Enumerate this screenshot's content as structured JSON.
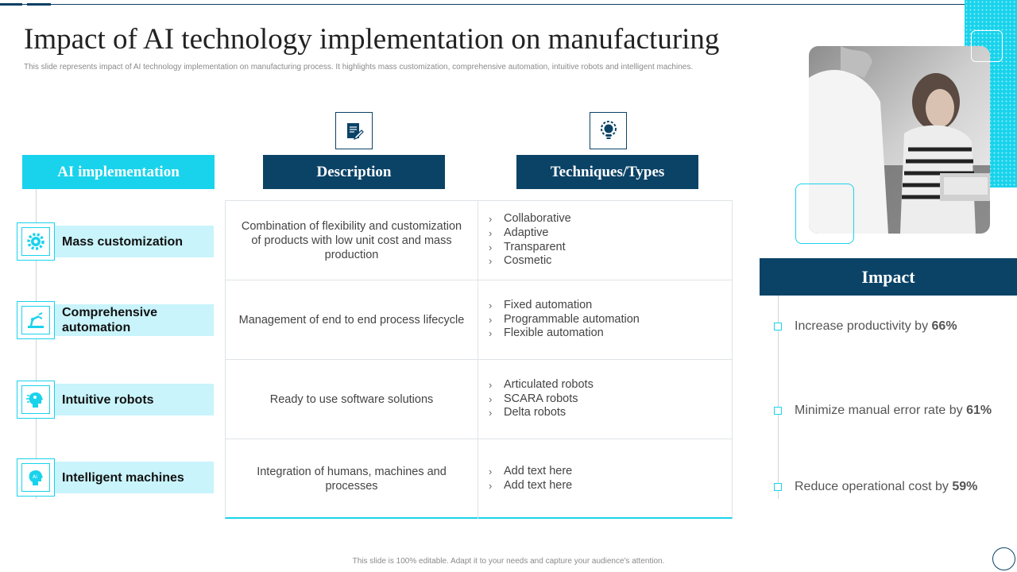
{
  "title": "Impact of AI technology implementation on manufacturing",
  "subtitle": "This slide represents impact of AI technology implementation  on manufacturing process. It highlights mass customization, comprehensive automation, intuitive robots and intelligent machines.",
  "headers": {
    "ai": "AI implementation",
    "description": "Description",
    "techniques": "Techniques/Types"
  },
  "icons": {
    "description": "document-edit-icon",
    "techniques": "lightbulb-gear-icon"
  },
  "rows": [
    {
      "label": "Mass customization",
      "icon": "gear-icon",
      "description": "Combination of flexibility and customization of products with low unit cost and mass production",
      "techniques": [
        "Collaborative",
        "Adaptive",
        "Transparent",
        "Cosmetic"
      ]
    },
    {
      "label": "Comprehensive automation",
      "icon": "robotic-arm-icon",
      "description": "Management of end to end process lifecycle",
      "techniques": [
        "Fixed automation",
        "Programmable automation",
        "Flexible automation"
      ]
    },
    {
      "label": "Intuitive robots",
      "icon": "ai-head-icon",
      "description": "Ready to use software solutions",
      "techniques": [
        "Articulated robots",
        "SCARA robots",
        "Delta robots"
      ]
    },
    {
      "label": "Intelligent machines",
      "icon": "ai-brain-icon",
      "description": "Integration of humans, machines and processes",
      "techniques": [
        "Add text here",
        "Add text here"
      ]
    }
  ],
  "impact": {
    "title": "Impact",
    "items": [
      {
        "text": "Increase productivity by ",
        "value": "66%"
      },
      {
        "text": "Minimize manual error rate by ",
        "value": "61%"
      },
      {
        "text": "Reduce operational cost by ",
        "value": "59%"
      }
    ]
  },
  "footer": "This slide is 100% editable. Adapt it to your needs and capture your audience's attention.",
  "colors": {
    "cyan": "#19d3ec",
    "navy": "#0b4367",
    "light_cyan": "#c9f4fb"
  }
}
